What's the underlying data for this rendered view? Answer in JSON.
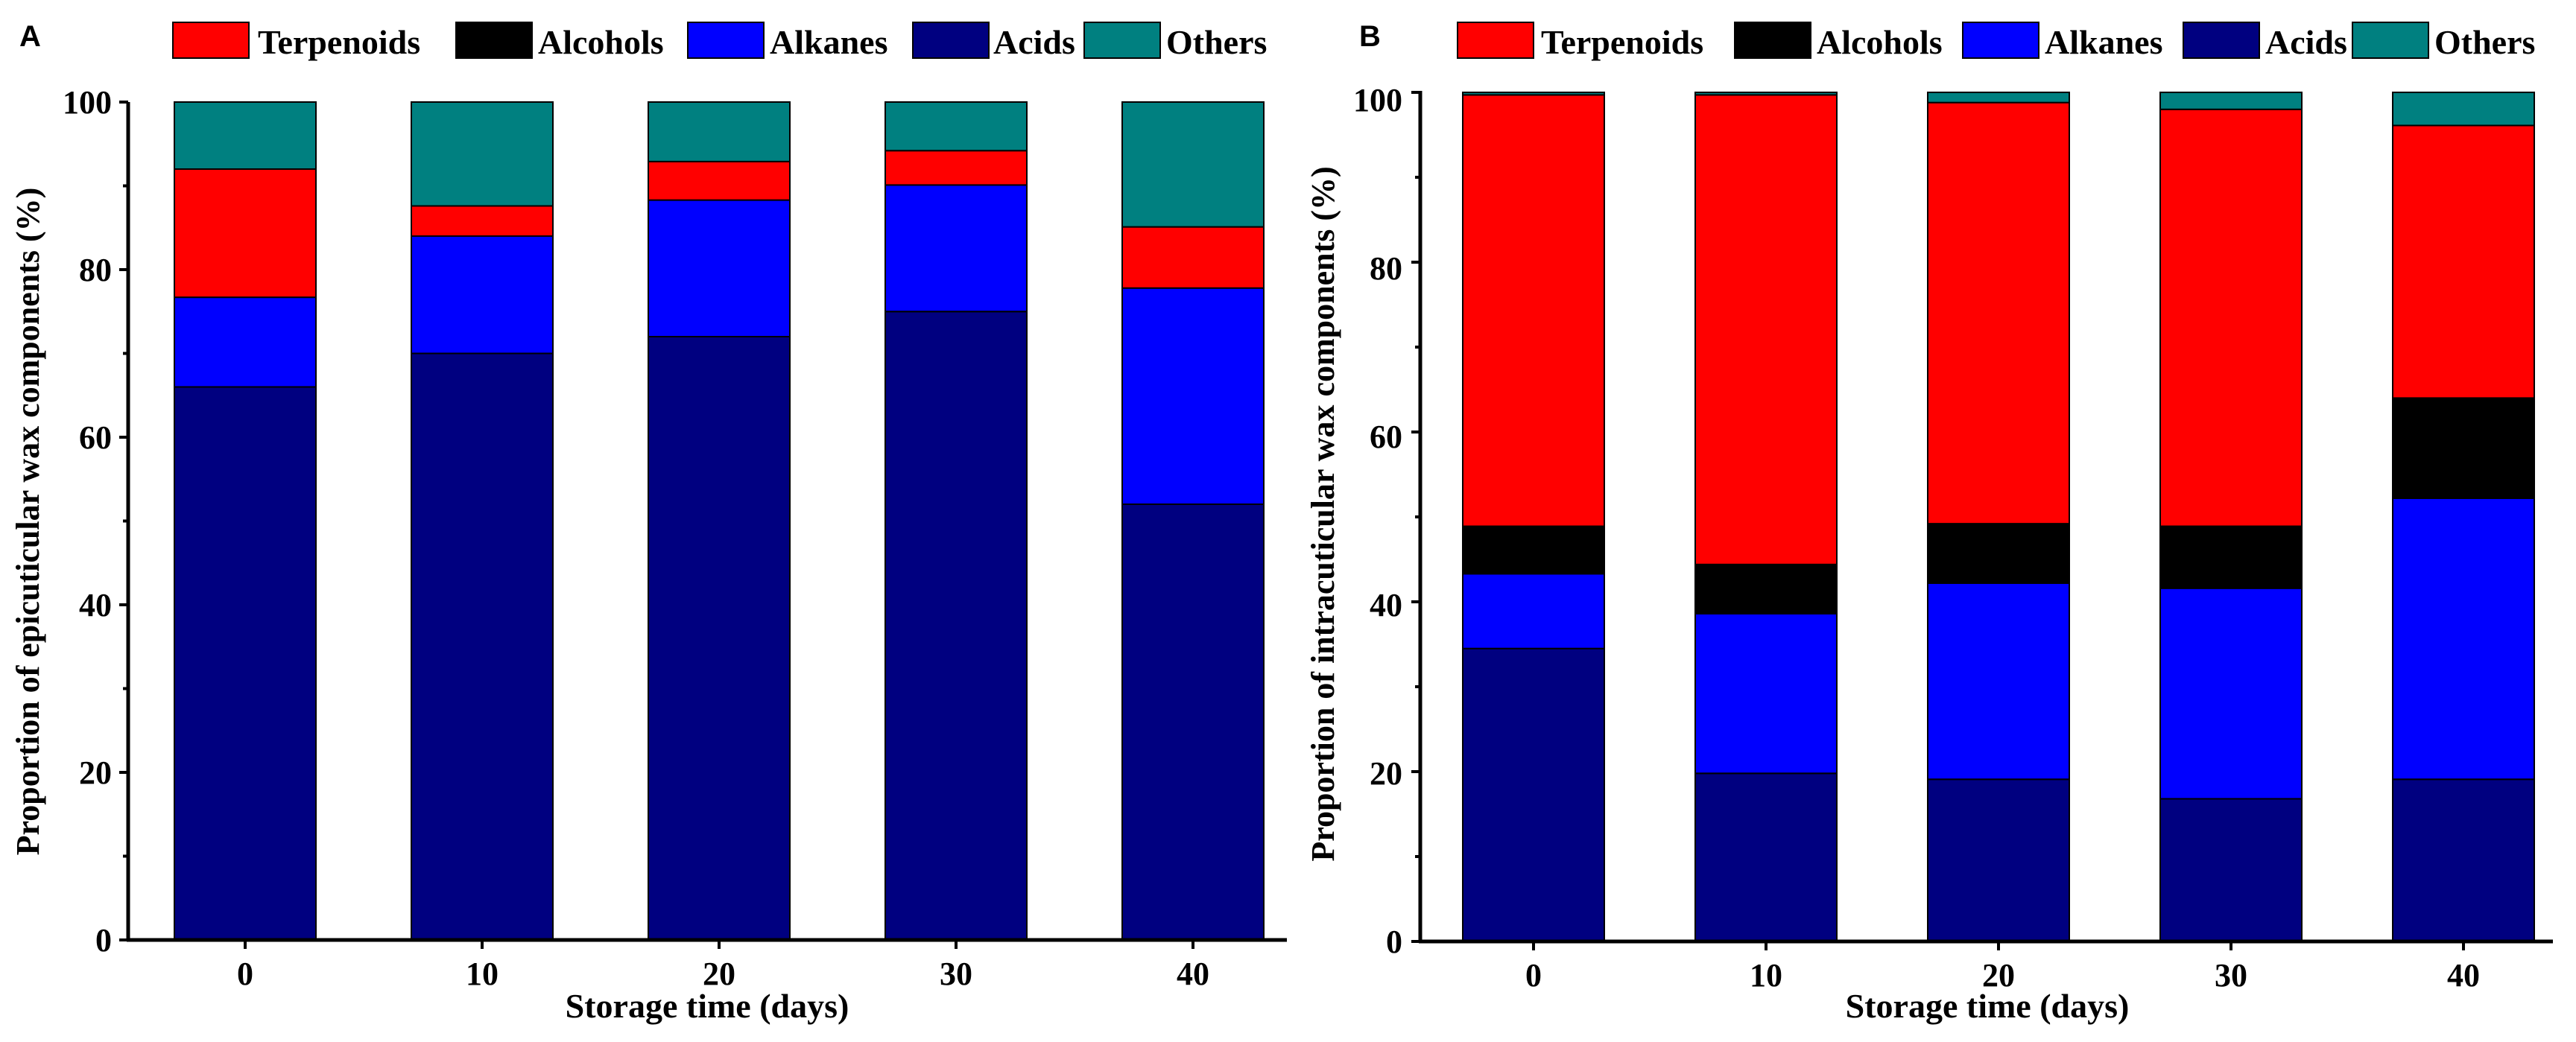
{
  "chart_data": [
    {
      "type": "bar",
      "stacked": true,
      "panel_label": "A",
      "xlabel": "Storage time (days)",
      "ylabel": "Proportion of epicuticular wax components (%)",
      "categories": [
        "0",
        "10",
        "20",
        "30",
        "40"
      ],
      "yticks": [
        "0",
        "20",
        "40",
        "60",
        "80",
        "100"
      ],
      "ylim": [
        0,
        100
      ],
      "legend_position": "top",
      "legend_entries": [
        "Terpenoids",
        "Alcohols",
        "Alkanes",
        "Acids",
        "Others"
      ],
      "series": [
        {
          "name": "Acids",
          "color": "#000080",
          "values": [
            66,
            70,
            72,
            75,
            52
          ]
        },
        {
          "name": "Alkanes",
          "color": "#0000ff",
          "values": [
            10.7,
            14,
            16.3,
            15.1,
            25.8
          ]
        },
        {
          "name": "Alcohols",
          "color": "#000000",
          "values": [
            0,
            0,
            0,
            0,
            0
          ]
        },
        {
          "name": "Terpenoids",
          "color": "#ff0000",
          "values": [
            15.3,
            3.6,
            4.6,
            4.1,
            7.3
          ]
        },
        {
          "name": "Others",
          "color": "#008080",
          "values": [
            8,
            12.4,
            7.1,
            5.8,
            14.9
          ]
        }
      ]
    },
    {
      "type": "bar",
      "stacked": true,
      "panel_label": "B",
      "xlabel": "Storage time (days)",
      "ylabel": "Proportion of intracuticular wax components (%)",
      "categories": [
        "0",
        "10",
        "20",
        "30",
        "40"
      ],
      "yticks": [
        "0",
        "20",
        "40",
        "60",
        "80",
        "100"
      ],
      "ylim": [
        0,
        100
      ],
      "legend_position": "top",
      "legend_entries": [
        "Terpenoids",
        "Alcohols",
        "Alkanes",
        "Acids",
        "Others"
      ],
      "series": [
        {
          "name": "Acids",
          "color": "#000080",
          "values": [
            34.5,
            19.8,
            19.1,
            16.8,
            19.1
          ]
        },
        {
          "name": "Alkanes",
          "color": "#0000ff",
          "values": [
            8.8,
            18.8,
            23.1,
            24.8,
            33.1
          ]
        },
        {
          "name": "Alcohols",
          "color": "#000000",
          "values": [
            5.6,
            5.8,
            7.0,
            7.3,
            11.8
          ]
        },
        {
          "name": "Terpenoids",
          "color": "#ff0000",
          "values": [
            50.8,
            55.3,
            49.6,
            49.1,
            32.1
          ]
        },
        {
          "name": "Others",
          "color": "#008080",
          "values": [
            0.3,
            0.3,
            1.2,
            2.0,
            3.9
          ]
        }
      ]
    }
  ]
}
